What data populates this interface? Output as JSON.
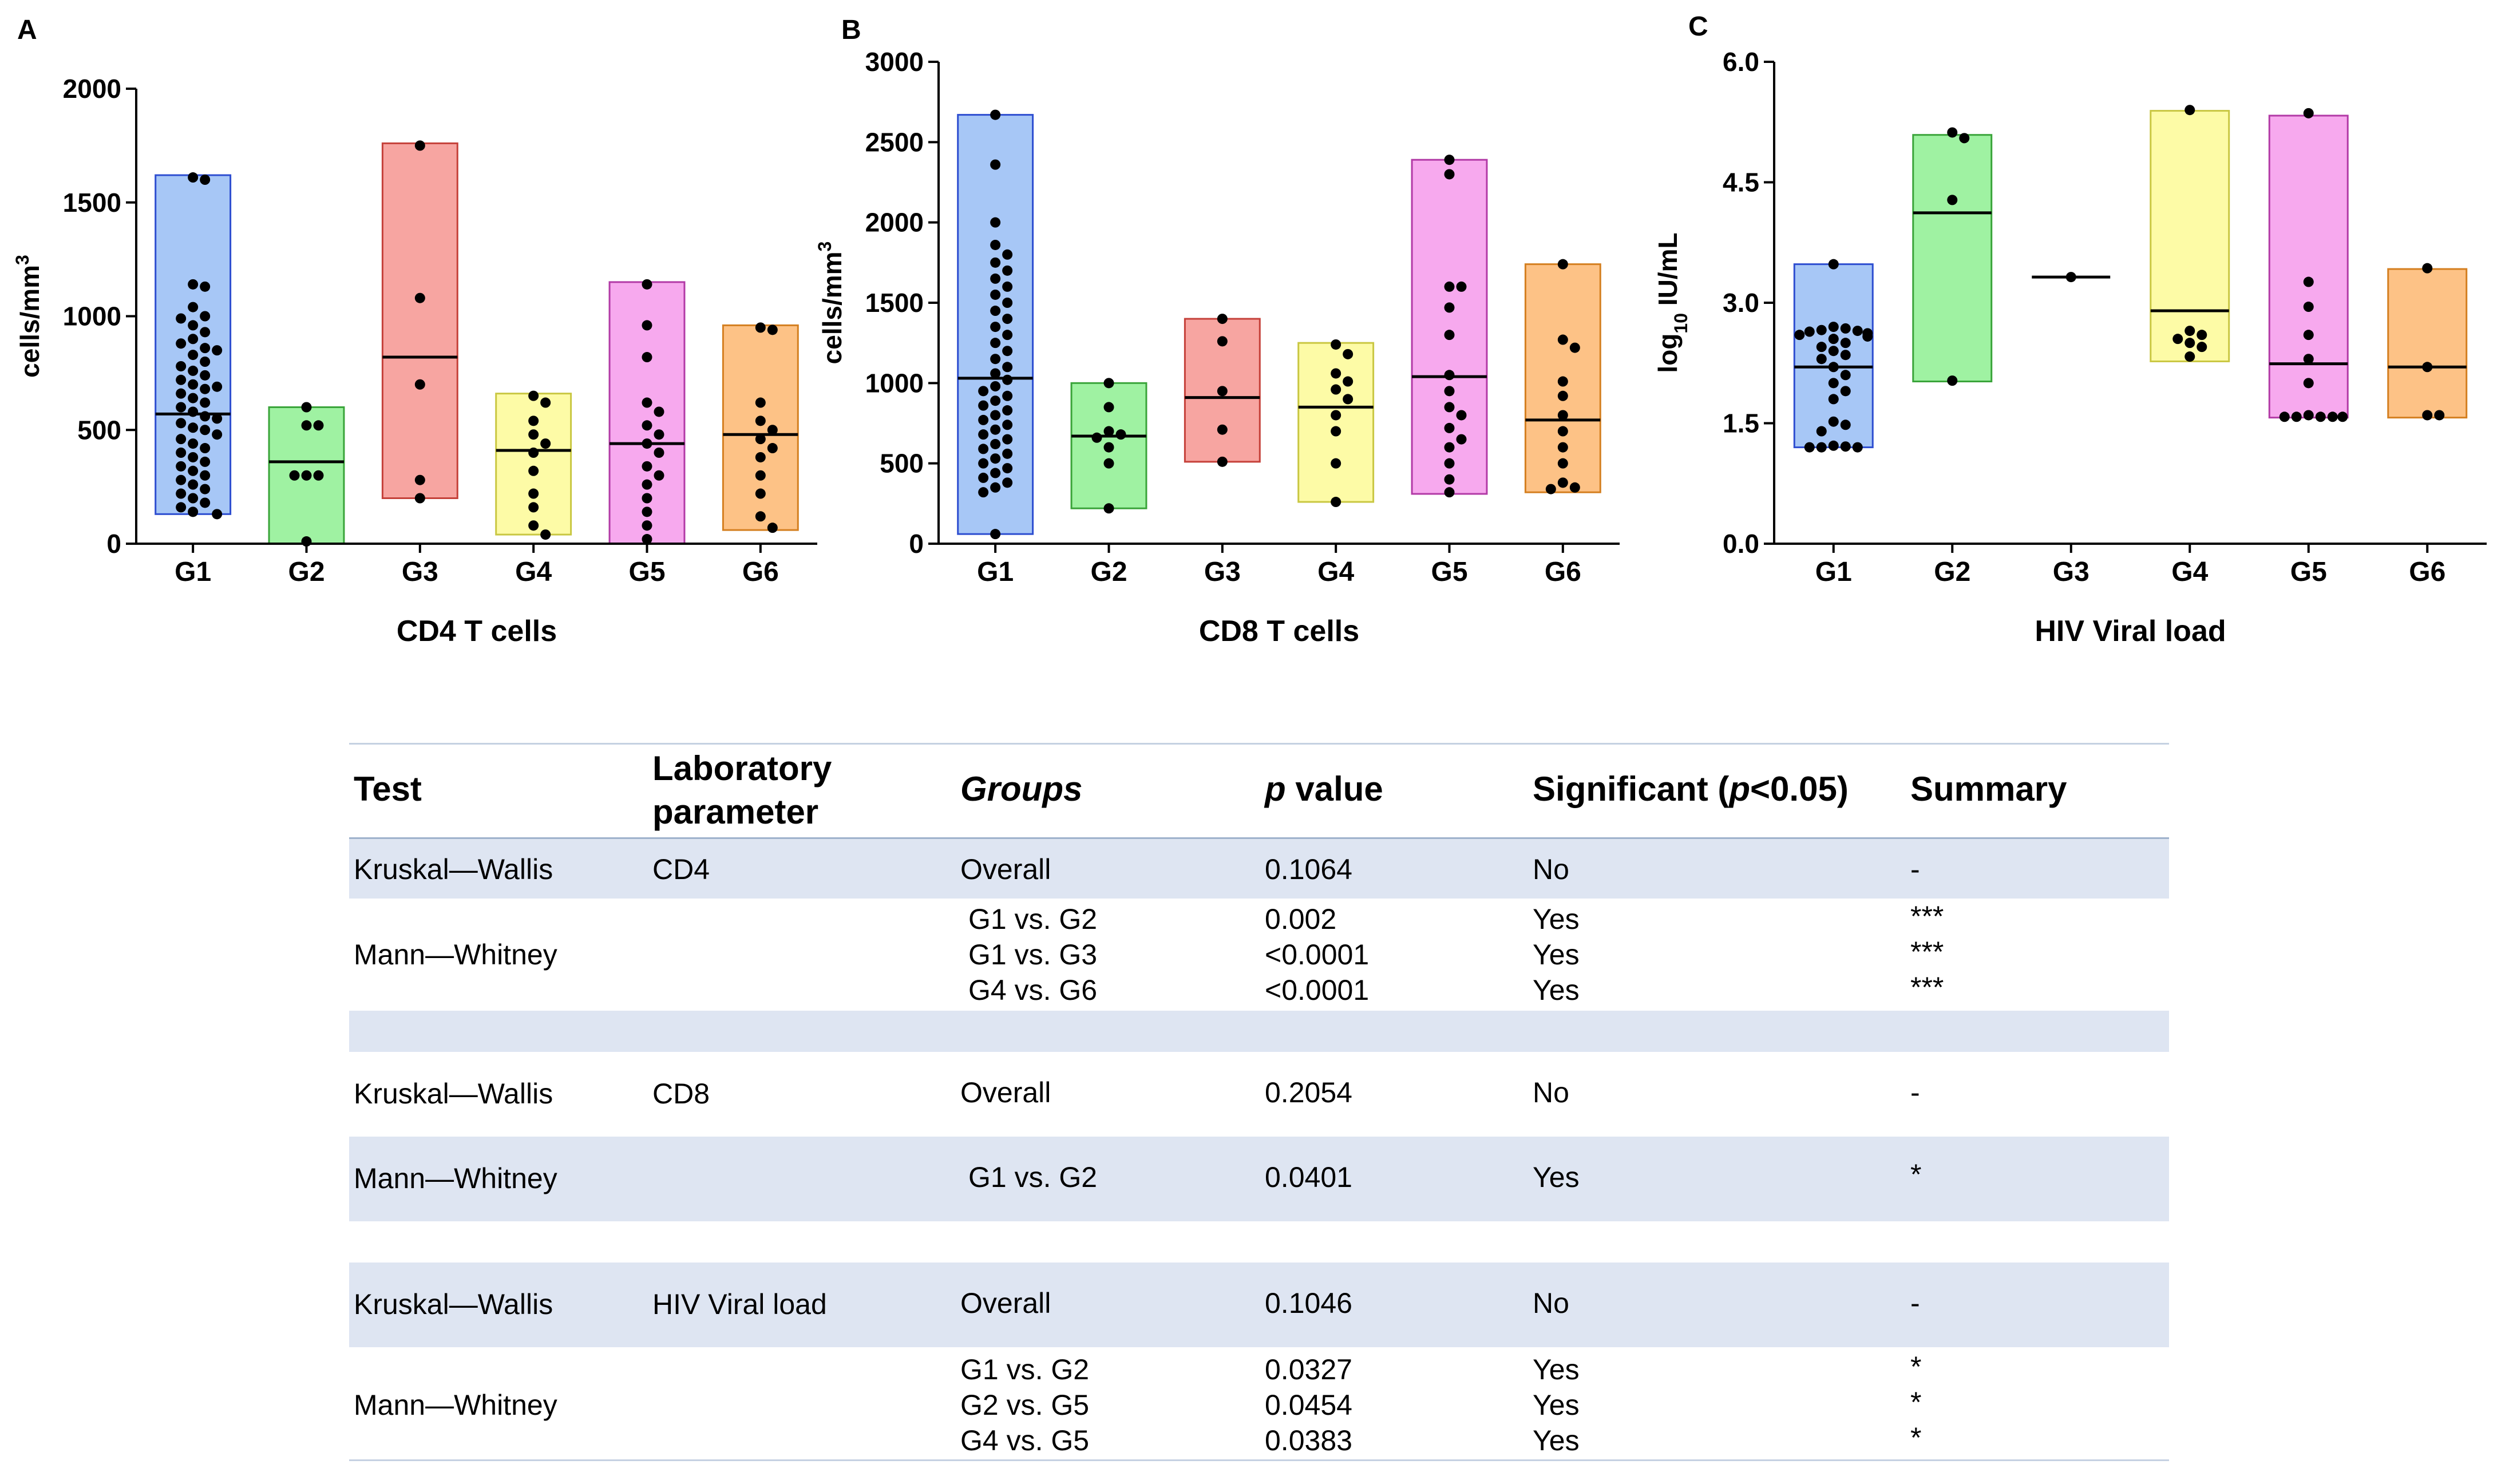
{
  "colors": {
    "G1": "#a7c7f6",
    "G2": "#9ff2a2",
    "G3": "#f7a5a1",
    "G4": "#fdfba6",
    "G5": "#f7a9ee",
    "G6": "#fdc286",
    "G1_edge": "#2d4dd0",
    "G2_edge": "#3aa43a",
    "G3_edge": "#c5413a",
    "G4_edge": "#c9c742",
    "G5_edge": "#b23aa6",
    "G6_edge": "#d47f20",
    "table_shade": "#dee5f2"
  },
  "chart_data": [
    {
      "panel_label": "A",
      "type": "scatter",
      "xlabel": "CD4 T cells",
      "ylabel_base": "cells/mm",
      "ylabel_sup": "3",
      "ylim": [
        0,
        2000
      ],
      "yticks": [
        0,
        500,
        1000,
        1500,
        2000
      ],
      "ytick_labels": [
        "0",
        "500",
        "1000",
        "1500",
        "2000"
      ],
      "categories": [
        "G1",
        "G2",
        "G3",
        "G4",
        "G5",
        "G6"
      ],
      "groups": [
        {
          "name": "G1",
          "range": [
            130,
            1620
          ],
          "median": 570,
          "points": [
            1610,
            1600,
            1140,
            1130,
            1040,
            1000,
            990,
            960,
            930,
            900,
            880,
            860,
            850,
            830,
            800,
            780,
            760,
            740,
            720,
            700,
            690,
            680,
            660,
            640,
            620,
            600,
            580,
            560,
            550,
            530,
            510,
            500,
            480,
            460,
            440,
            420,
            400,
            380,
            360,
            340,
            320,
            300,
            280,
            260,
            240,
            220,
            200,
            180,
            160,
            140,
            130
          ]
        },
        {
          "name": "G2",
          "range": [
            0,
            600
          ],
          "median": 360,
          "points": [
            600,
            520,
            520,
            300,
            300,
            300,
            10
          ]
        },
        {
          "name": "G3",
          "range": [
            200,
            1760
          ],
          "median": 820,
          "points": [
            1750,
            1080,
            700,
            280,
            200
          ]
        },
        {
          "name": "G4",
          "range": [
            40,
            660
          ],
          "median": 410,
          "points": [
            650,
            620,
            540,
            480,
            440,
            400,
            320,
            220,
            160,
            80,
            40
          ]
        },
        {
          "name": "G5",
          "range": [
            0,
            1150
          ],
          "median": 440,
          "points": [
            1140,
            960,
            820,
            620,
            580,
            520,
            480,
            440,
            400,
            340,
            300,
            260,
            200,
            140,
            80,
            20
          ]
        },
        {
          "name": "G6",
          "range": [
            60,
            960
          ],
          "median": 480,
          "points": [
            950,
            940,
            620,
            540,
            500,
            460,
            420,
            380,
            300,
            220,
            120,
            70
          ]
        }
      ]
    },
    {
      "panel_label": "B",
      "type": "scatter",
      "xlabel": "CD8 T cells",
      "ylabel_base": "cells/mm",
      "ylabel_sup": "3",
      "ylim": [
        0,
        3000
      ],
      "yticks": [
        0,
        500,
        1000,
        1500,
        2000,
        2500,
        3000
      ],
      "ytick_labels": [
        "0",
        "500",
        "1000",
        "1500",
        "2000",
        "2500",
        "3000"
      ],
      "categories": [
        "G1",
        "G2",
        "G3",
        "G4",
        "G5",
        "G6"
      ],
      "groups": [
        {
          "name": "G1",
          "range": [
            60,
            2670
          ],
          "median": 1030,
          "points": [
            2670,
            2360,
            2000,
            1860,
            1800,
            1750,
            1700,
            1650,
            1600,
            1550,
            1500,
            1450,
            1400,
            1350,
            1300,
            1250,
            1200,
            1150,
            1100,
            1060,
            1020,
            980,
            950,
            920,
            890,
            860,
            830,
            800,
            770,
            740,
            710,
            680,
            650,
            620,
            590,
            560,
            530,
            500,
            470,
            440,
            410,
            380,
            350,
            320,
            60
          ]
        },
        {
          "name": "G2",
          "range": [
            220,
            1000
          ],
          "median": 670,
          "points": [
            1000,
            850,
            700,
            680,
            660,
            600,
            500,
            220
          ]
        },
        {
          "name": "G3",
          "range": [
            510,
            1400
          ],
          "median": 910,
          "points": [
            1400,
            1260,
            950,
            710,
            510
          ]
        },
        {
          "name": "G4",
          "range": [
            260,
            1250
          ],
          "median": 850,
          "points": [
            1240,
            1180,
            1060,
            1010,
            960,
            900,
            800,
            700,
            500,
            260
          ]
        },
        {
          "name": "G5",
          "range": [
            310,
            2390
          ],
          "median": 1040,
          "points": [
            2390,
            2300,
            1600,
            1600,
            1470,
            1300,
            1050,
            950,
            850,
            800,
            720,
            650,
            600,
            500,
            400,
            320
          ]
        },
        {
          "name": "G6",
          "range": [
            320,
            1740
          ],
          "median": 770,
          "points": [
            1740,
            1270,
            1220,
            1010,
            920,
            800,
            700,
            600,
            500,
            380,
            350,
            340
          ]
        }
      ]
    },
    {
      "panel_label": "C",
      "type": "scatter",
      "xlabel": "HIV Viral load",
      "ylabel_base": "log",
      "ylabel_sub": "10",
      "ylabel_rest": " IU/mL",
      "ylim": [
        0,
        6
      ],
      "yticks": [
        0,
        1.5,
        3,
        4.5,
        6
      ],
      "ytick_labels": [
        "0.0",
        "1.5",
        "3.0",
        "4.5",
        "6.0"
      ],
      "categories": [
        "G1",
        "G2",
        "G3",
        "G4",
        "G5",
        "G6"
      ],
      "groups": [
        {
          "name": "G1",
          "range": [
            1.2,
            3.48
          ],
          "median": 2.2,
          "points": [
            3.48,
            2.7,
            2.68,
            2.66,
            2.65,
            2.64,
            2.62,
            2.6,
            2.58,
            2.55,
            2.5,
            2.45,
            2.4,
            2.35,
            2.3,
            2.2,
            2.1,
            2.0,
            1.9,
            1.8,
            1.52,
            1.48,
            1.4,
            1.22,
            1.21,
            1.2,
            1.2,
            1.2
          ]
        },
        {
          "name": "G2",
          "range": [
            2.02,
            5.09
          ],
          "median": 4.12,
          "points": [
            5.12,
            5.05,
            4.28,
            2.03
          ]
        },
        {
          "name": "G3",
          "range": [
            3.32,
            3.32
          ],
          "median": 3.32,
          "points": [
            3.32
          ]
        },
        {
          "name": "G4",
          "range": [
            2.27,
            5.39
          ],
          "median": 2.9,
          "points": [
            5.4,
            2.65,
            2.6,
            2.55,
            2.5,
            2.45,
            2.33
          ]
        },
        {
          "name": "G5",
          "range": [
            1.57,
            5.33
          ],
          "median": 2.24,
          "points": [
            5.36,
            3.26,
            2.95,
            2.6,
            2.3,
            2.0,
            1.6,
            1.58,
            1.58,
            1.58,
            1.58,
            1.58
          ]
        },
        {
          "name": "G6",
          "range": [
            1.57,
            3.42
          ],
          "median": 2.2,
          "points": [
            3.43,
            2.2,
            1.6,
            1.6
          ]
        }
      ]
    }
  ],
  "table": {
    "headers": {
      "test": "Test",
      "param_line1": "Laboratory",
      "param_line2": "parameter",
      "groups": "Groups",
      "p_italic": "p",
      "p_rest": " value",
      "sig_pre": "Significant (",
      "sig_italic": "p",
      "sig_post": "<0.05)",
      "summary": "Summary"
    },
    "rows": [
      {
        "test": "Kruskal—Wallis",
        "param": "CD4",
        "groups": "Overall",
        "p": "0.1064",
        "sig": "No",
        "summary": "-"
      },
      {
        "test": "Mann—Whitney",
        "sub": [
          {
            "groups": "G1 vs. G2",
            "p": "0.002",
            "sig": "Yes",
            "summary": "***"
          },
          {
            "groups": "G1 vs. G3",
            "p": "<0.0001",
            "sig": "Yes",
            "summary": "***"
          },
          {
            "groups": "G4 vs. G6",
            "p": "<0.0001",
            "sig": "Yes",
            "summary": "***"
          }
        ]
      },
      {
        "test": "Kruskal—Wallis",
        "param": "CD8",
        "groups": "Overall",
        "p": "0.2054",
        "sig": "No",
        "summary": "-"
      },
      {
        "test": "Mann—Whitney",
        "sub": [
          {
            "groups": "G1 vs. G2",
            "p": "0.0401",
            "sig": "Yes",
            "summary": "*"
          }
        ]
      },
      {
        "test": "Kruskal—Wallis",
        "param": "HIV Viral load",
        "groups": "Overall",
        "p": "0.1046",
        "sig": "No",
        "summary": "-"
      },
      {
        "test": "Mann—Whitney",
        "sub": [
          {
            "groups": "G1 vs. G2",
            "p": "0.0327",
            "sig": "Yes",
            "summary": "*"
          },
          {
            "groups": "G2 vs. G5",
            "p": "0.0454",
            "sig": "Yes",
            "summary": "*"
          },
          {
            "groups": "G4 vs. G5",
            "p": "0.0383",
            "sig": "Yes",
            "summary": "*"
          }
        ]
      }
    ]
  }
}
